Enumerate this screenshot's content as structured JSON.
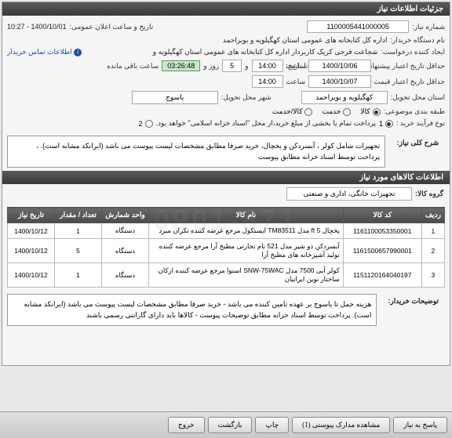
{
  "watermark": "0901-871",
  "header": {
    "title": "جزئیات اطلاعات نیاز"
  },
  "form": {
    "need_number_label": "شماره نیاز:",
    "need_number": "1100005441000005",
    "announce_label": "تاریخ و ساعت اعلان عمومی:",
    "announce_value": "1400/10/01 - 10:27",
    "buyer_label": "نام دستگاه خریدار:",
    "buyer_value": "اداره کل کتابخانه های عمومی استان کهگیلویه و بویراحمد",
    "requester_label": "ایجاد کننده درخواست:",
    "requester_value": "شجاعت فرجی کریک کاربردار اداره کل کتابخانه های عمومی استان کهگیلویه و",
    "contact_link": "اطلاعات تماس خریدار",
    "deadline_label": "حداقل تاریخ اعتبار پیشنهاد / مهلت ارسال پاسخ تا تاریخ:",
    "deadline_date": "1400/10/06",
    "time_label": "ساعت",
    "deadline_time": "14:00",
    "days_and": "و",
    "days_value": "5",
    "days_unit": "روز و",
    "countdown": "03:26:48",
    "remaining": "ساعت باقی مانده",
    "price_valid_label": "حداقل تاریخ اعتبار قیمت تا تاریخ:",
    "price_valid_date": "1400/10/07",
    "price_valid_time": "14:00",
    "province_label": "استان محل تحویل:",
    "province_value": "کهگیلویه و بویراحمد",
    "city_label": "شهر محل تحویل:",
    "city_value": "یاسوج",
    "category_label": "طبقه بندی موضوعی:",
    "cat_goods": "کالا",
    "cat_service": "خدمت",
    "cat_both": "کالا/خدمت",
    "process_label": "نوع فرآیند خرید :",
    "process_note": "پرداخت تمام یا بخشی از مبلغ خرید،از محل \"اسناد خزانه اسلامی\" خواهد بود.",
    "opt1": "1",
    "opt2": "2"
  },
  "desc": {
    "label": "شرح کلی نیاز:",
    "text": "تجهیزات شامل کولر ، آبسردکن و یخچال، خرید صرفا مطابق مشخصات لیست پیوست می باشد (ایرانکد مشابه است). ، پرداخت توسط اسناد خزانه مطابق پیوست"
  },
  "items_header": "اطلاعات کالاهای مورد نیاز",
  "group": {
    "label": "گروه کالا:",
    "value": "تجهیزات خانگی، اداری و صنعتی"
  },
  "table": {
    "headers": [
      "ردیف",
      "کد کالا",
      "نام کالا",
      "واحد شمارش",
      "تعداد / مقدار",
      "تاریخ نیاز"
    ],
    "rows": [
      {
        "n": "1",
        "code": "1161100053350001",
        "name": "یخچال 5 ft مدل TM83511 ایستکول مرجع عرضه کننده تکران مبرد",
        "unit": "دستگاه",
        "qty": "1",
        "date": "1400/10/12"
      },
      {
        "n": "2",
        "code": "1161500657990001",
        "name": "آبسردکن دو شیر مدل 521 نام تجارتی مطبخ آرا مرجع عرضه کننده تولید آشپزخانه های مطبخ آرا",
        "unit": "دستگاه",
        "qty": "5",
        "date": "1400/10/12"
      },
      {
        "n": "3",
        "code": "1151120164040197",
        "name": "کولر آبی 7500 مدل SNW-75WAC اسنوا مرجع عرضه کننده ارکان ساختار نوین ایرانیان",
        "unit": "دستگاه",
        "qty": "1",
        "date": "1400/10/12"
      }
    ]
  },
  "buyer_notes": {
    "label": "توضیحات خریدار:",
    "text": "هزینه حمل تا یاسوج بر عهده تامین کننده می باشد - خرید صرفا مطابق مشخصات لیست پیوست می باشد (ایرانکد مشابه است). پرداخت توسط اسناد خزانه مطابق توضیحات پیوست - کالاها باید دارای گارانتی رسمی باشند"
  },
  "buttons": {
    "respond": "پاسخ به نیاز",
    "attachments": "مشاهده مدارک پیوستی (1)",
    "print": "چاپ",
    "back": "بازگشت",
    "exit": "خروج"
  }
}
